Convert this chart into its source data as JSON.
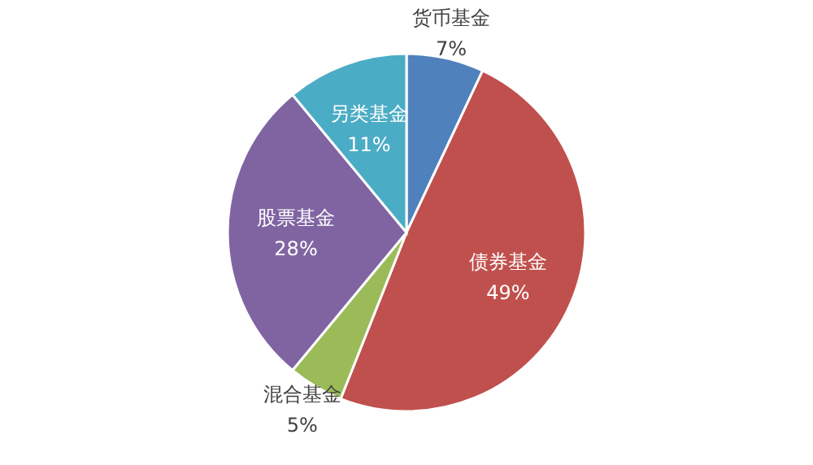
{
  "chart_data": {
    "type": "pie",
    "categories": [
      "货币基金",
      "债券基金",
      "混合基金",
      "股票基金",
      "另类基金"
    ],
    "values": [
      7,
      49,
      5,
      28,
      11
    ],
    "value_labels": [
      "7%",
      "49%",
      "5%",
      "28%",
      "11%"
    ],
    "colors": [
      "#4f81bd",
      "#c0504d",
      "#9bbb59",
      "#8064a2",
      "#4bacc6"
    ],
    "legend": false
  }
}
